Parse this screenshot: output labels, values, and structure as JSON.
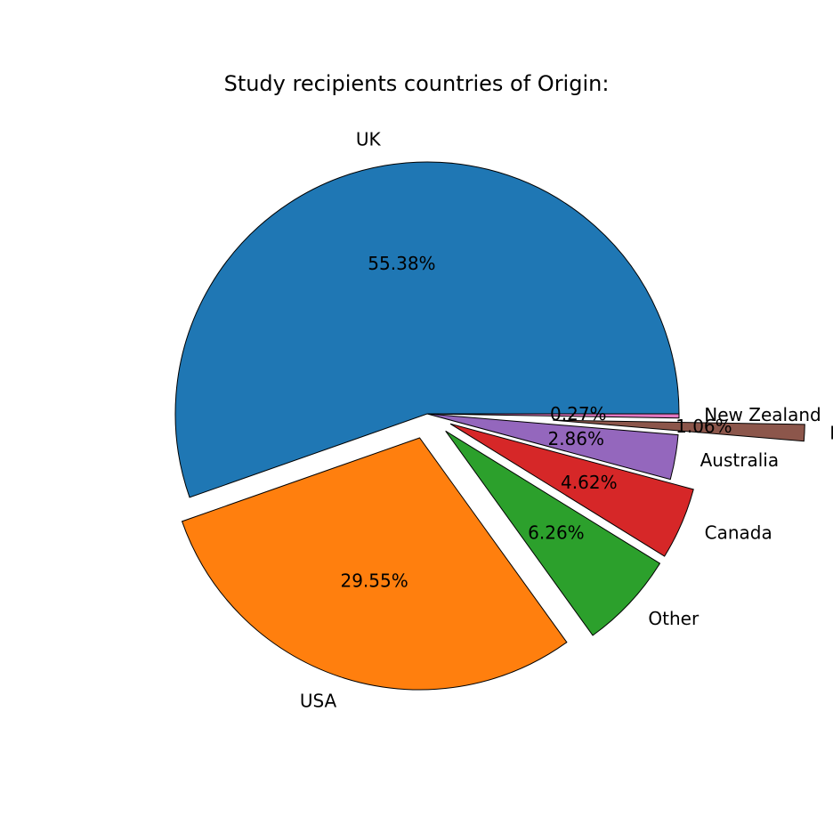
{
  "chart_data": {
    "type": "pie",
    "title": "Study recipients countries of Origin:",
    "slices": [
      {
        "label": "UK",
        "value": 55.38,
        "pct_label": "55.38%",
        "color": "#1f77b4",
        "exploded": false
      },
      {
        "label": "USA",
        "value": 29.55,
        "pct_label": "29.55%",
        "color": "#ff7f0e",
        "exploded": true
      },
      {
        "label": "Other",
        "value": 6.26,
        "pct_label": "6.26%",
        "color": "#2ca02c",
        "exploded": true
      },
      {
        "label": "Canada",
        "value": 4.62,
        "pct_label": "4.62%",
        "color": "#d62728",
        "exploded": true
      },
      {
        "label": "Australia",
        "value": 2.86,
        "pct_label": "2.86%",
        "color": "#9467bd",
        "exploded": false
      },
      {
        "label": "F",
        "value": 1.06,
        "pct_label": "1.06%",
        "color": "#8c564b",
        "exploded": true
      },
      {
        "label": "New Zealand",
        "value": 0.27,
        "pct_label": "0.27%",
        "color": "#e377c2",
        "exploded": false
      }
    ],
    "start_angle": "east",
    "direction": "counterclockwise",
    "legend": "none"
  }
}
